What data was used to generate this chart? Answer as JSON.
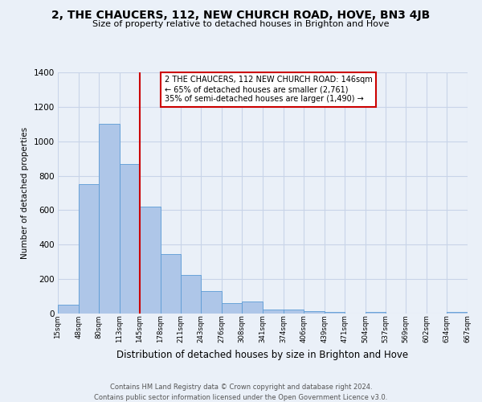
{
  "title": "2, THE CHAUCERS, 112, NEW CHURCH ROAD, HOVE, BN3 4JB",
  "subtitle": "Size of property relative to detached houses in Brighton and Hove",
  "xlabel": "Distribution of detached houses by size in Brighton and Hove",
  "ylabel": "Number of detached properties",
  "bar_edges": [
    15,
    48,
    80,
    113,
    145,
    178,
    211,
    243,
    276,
    308,
    341,
    374,
    406,
    439,
    471,
    504,
    537,
    569,
    602,
    634,
    667
  ],
  "bar_heights": [
    50,
    750,
    1100,
    870,
    620,
    345,
    225,
    130,
    63,
    70,
    25,
    22,
    15,
    10,
    0,
    10,
    0,
    0,
    0,
    10
  ],
  "bar_color": "#aec6e8",
  "bar_edgecolor": "#5b9bd5",
  "vline_x": 145,
  "vline_color": "#cc0000",
  "annotation_title": "2 THE CHAUCERS, 112 NEW CHURCH ROAD: 146sqm",
  "annotation_line1": "← 65% of detached houses are smaller (2,761)",
  "annotation_line2": "35% of semi-detached houses are larger (1,490) →",
  "annotation_box_facecolor": "#ffffff",
  "annotation_box_edgecolor": "#cc0000",
  "ylim": [
    0,
    1400
  ],
  "xlim": [
    15,
    667
  ],
  "grid_color": "#c8d4e8",
  "bg_color": "#eaf0f8",
  "footnote1": "Contains HM Land Registry data © Crown copyright and database right 2024.",
  "footnote2": "Contains public sector information licensed under the Open Government Licence v3.0.",
  "tick_labels": [
    "15sqm",
    "48sqm",
    "80sqm",
    "113sqm",
    "145sqm",
    "178sqm",
    "211sqm",
    "243sqm",
    "276sqm",
    "308sqm",
    "341sqm",
    "374sqm",
    "406sqm",
    "439sqm",
    "471sqm",
    "504sqm",
    "537sqm",
    "569sqm",
    "602sqm",
    "634sqm",
    "667sqm"
  ],
  "yticks": [
    0,
    200,
    400,
    600,
    800,
    1000,
    1200,
    1400
  ]
}
